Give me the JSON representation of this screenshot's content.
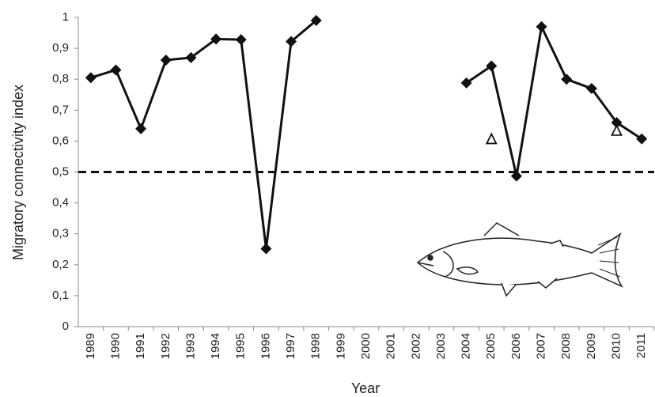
{
  "chart_data": {
    "type": "line",
    "x_label": "Year",
    "y_label": "Migratory connectivity index",
    "categories": [
      "1989",
      "1990",
      "1991",
      "1992",
      "1993",
      "1994",
      "1995",
      "1996",
      "1997",
      "1998",
      "1999",
      "2000",
      "2001",
      "2002",
      "2003",
      "2004",
      "2005",
      "2006",
      "2007",
      "2008",
      "2009",
      "2010",
      "2011"
    ],
    "series": [
      {
        "color": "#111111",
        "marker": "diamond",
        "values": [
          0.805,
          0.83,
          0.64,
          0.862,
          0.87,
          0.93,
          0.928,
          0.252,
          0.922,
          0.99,
          null,
          null,
          null,
          null,
          null,
          0.788,
          0.843,
          0.487,
          0.97,
          0.8,
          0.77,
          0.66,
          0.607
        ]
      },
      {
        "color": "#111111",
        "marker": "triangle-open",
        "values": [
          null,
          null,
          null,
          null,
          null,
          null,
          null,
          null,
          null,
          null,
          null,
          null,
          null,
          null,
          null,
          null,
          0.605,
          null,
          null,
          null,
          null,
          0.632,
          null
        ]
      }
    ],
    "reference_line": 0.5,
    "ylim": [
      0,
      1
    ],
    "yticks": [
      0,
      {
        "value": 0.1,
        "label": "0,1"
      },
      {
        "value": 0.2,
        "label": "0,2"
      },
      {
        "value": 0.3,
        "label": "0,3"
      },
      {
        "value": 0.4,
        "label": "0,4"
      },
      {
        "value": 0.5,
        "label": "0,5"
      },
      {
        "value": 0.6,
        "label": "0,6"
      },
      {
        "value": 0.7,
        "label": "0,7"
      },
      {
        "value": 0.8,
        "label": "0,8"
      },
      {
        "value": 0.9,
        "label": "0,9"
      },
      1
    ],
    "grid": false
  }
}
